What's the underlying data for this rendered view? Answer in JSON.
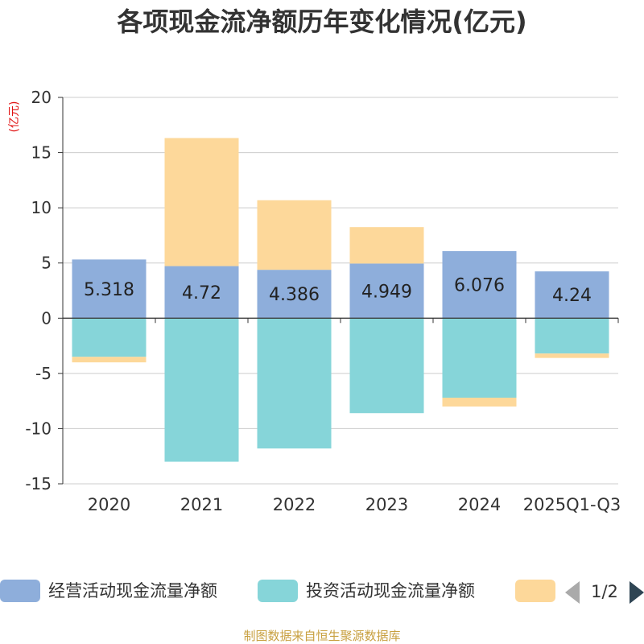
{
  "source_note": "制图数据来自恒生聚源数据库",
  "legend_pager": "1/2",
  "colors": {
    "operating": "#8eaedb",
    "investing": "#86d5d9",
    "financing": "#fdd89a",
    "grid": "#cccccc",
    "axis": "#333333",
    "pager_active": "#2f4554",
    "pager_inactive": "#aaaaaa"
  },
  "chart_data": {
    "type": "bar",
    "stacked": true,
    "title": "各项现金流净额历年变化情况(亿元)",
    "ylabel": "(亿元)",
    "xlabel": "",
    "ylim": [
      -15,
      20
    ],
    "yticks": [
      -15,
      -10,
      -5,
      0,
      5,
      10,
      15,
      20
    ],
    "grid": true,
    "legend_position": "bottom",
    "categories": [
      "2020",
      "2021",
      "2022",
      "2023",
      "2024",
      "2025Q1-Q3"
    ],
    "series": [
      {
        "key": "operating",
        "name": "经营活动现金流量净额",
        "values": [
          5.318,
          4.72,
          4.386,
          4.949,
          6.076,
          4.24
        ],
        "labels": [
          "5.318",
          "4.72",
          "4.386",
          "4.949",
          "6.076",
          "4.24"
        ],
        "show_labels": true
      },
      {
        "key": "investing",
        "name": "投资活动现金流量净额",
        "values": [
          -3.5,
          -13.0,
          -11.8,
          -8.6,
          -7.2,
          -3.2
        ],
        "show_labels": false
      },
      {
        "key": "financing",
        "name": "",
        "values": [
          -0.5,
          11.6,
          6.3,
          3.3,
          -0.8,
          -0.4
        ],
        "show_labels": false
      }
    ]
  }
}
